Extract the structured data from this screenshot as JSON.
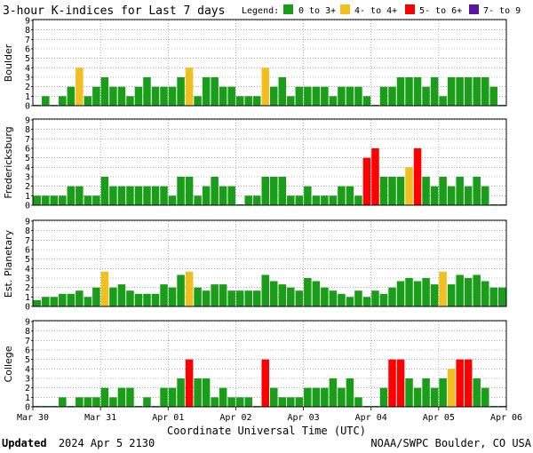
{
  "title": "3-hour K-indices for Last 7 days",
  "legend": {
    "label": "Legend:",
    "items": [
      {
        "name": "0 to 3+",
        "color": "#1a9e1a"
      },
      {
        "name": "4- to 4+",
        "color": "#f0c020"
      },
      {
        "name": "5- to 6+",
        "color": "#ff0000"
      },
      {
        "name": "7- to 9",
        "color": "#5a16a0"
      }
    ]
  },
  "xlabel": "Coordinate Universal Time (UTC)",
  "footer": {
    "updated_label": "Updated",
    "updated_value": "2024 Apr  5 2130",
    "source": "NOAA/SWPC Boulder, CO USA"
  },
  "chart_data": {
    "type": "bar",
    "x_ticks": [
      "Mar 30",
      "Mar 31",
      "Apr 01",
      "Apr 02",
      "Apr 03",
      "Apr 04",
      "Apr 05",
      "Apr 06"
    ],
    "y_ticks": [
      "0",
      "1",
      "2",
      "3",
      "4",
      "5",
      "6",
      "7",
      "8",
      "9"
    ],
    "ylim": [
      0,
      9
    ],
    "grid": true,
    "panels": [
      {
        "ylabel": "Boulder",
        "values": [
          0,
          1,
          0,
          1,
          2,
          4,
          1,
          2,
          3,
          2,
          2,
          1,
          2,
          3,
          2,
          2,
          2,
          3,
          4,
          1,
          3,
          3,
          2,
          2,
          1,
          1,
          1,
          4,
          2,
          3,
          1,
          2,
          2,
          2,
          2,
          1,
          2,
          2,
          2,
          1,
          0,
          2,
          2,
          3,
          3,
          3,
          2,
          3,
          1,
          3,
          3,
          3,
          3,
          3,
          2,
          0
        ]
      },
      {
        "ylabel": "Fredericksburg",
        "values": [
          1,
          1,
          1,
          1,
          2,
          2,
          1,
          1,
          3,
          2,
          2,
          2,
          2,
          2,
          2,
          2,
          1,
          3,
          3,
          1,
          2,
          3,
          2,
          2,
          0,
          1,
          1,
          3,
          3,
          3,
          1,
          1,
          2,
          1,
          1,
          1,
          2,
          2,
          1,
          5,
          6,
          3,
          3,
          3,
          4,
          6,
          3,
          2,
          3,
          2,
          3,
          2,
          3,
          2,
          0,
          0
        ]
      },
      {
        "ylabel": "Est. Planetary",
        "values": [
          0.67,
          1,
          1,
          1.33,
          1.33,
          1.67,
          1,
          2,
          3.67,
          2,
          2.33,
          1.67,
          1.33,
          1.33,
          1.33,
          2.33,
          2,
          3.33,
          3.67,
          2,
          1.67,
          2.33,
          2.33,
          1.67,
          1.67,
          1.67,
          1.67,
          3.33,
          2.67,
          2.33,
          2,
          1.67,
          3,
          2.67,
          2,
          1.67,
          1.33,
          1,
          1.67,
          1,
          1.67,
          1.33,
          2,
          2.67,
          3,
          2.67,
          3,
          2.33,
          3.67,
          2.33,
          3.33,
          3,
          3.33,
          2.67,
          2,
          2
        ]
      },
      {
        "ylabel": "College",
        "values": [
          0,
          0,
          0,
          1,
          0,
          1,
          1,
          1,
          2,
          1,
          2,
          2,
          0,
          1,
          0,
          2,
          2,
          3,
          5,
          3,
          3,
          1,
          2,
          1,
          1,
          1,
          0,
          5,
          2,
          1,
          1,
          1,
          2,
          2,
          2,
          3,
          2,
          3,
          1,
          0,
          0,
          2,
          5,
          5,
          3,
          2,
          3,
          2,
          3,
          4,
          5,
          5,
          3,
          2,
          0,
          0
        ]
      }
    ]
  }
}
